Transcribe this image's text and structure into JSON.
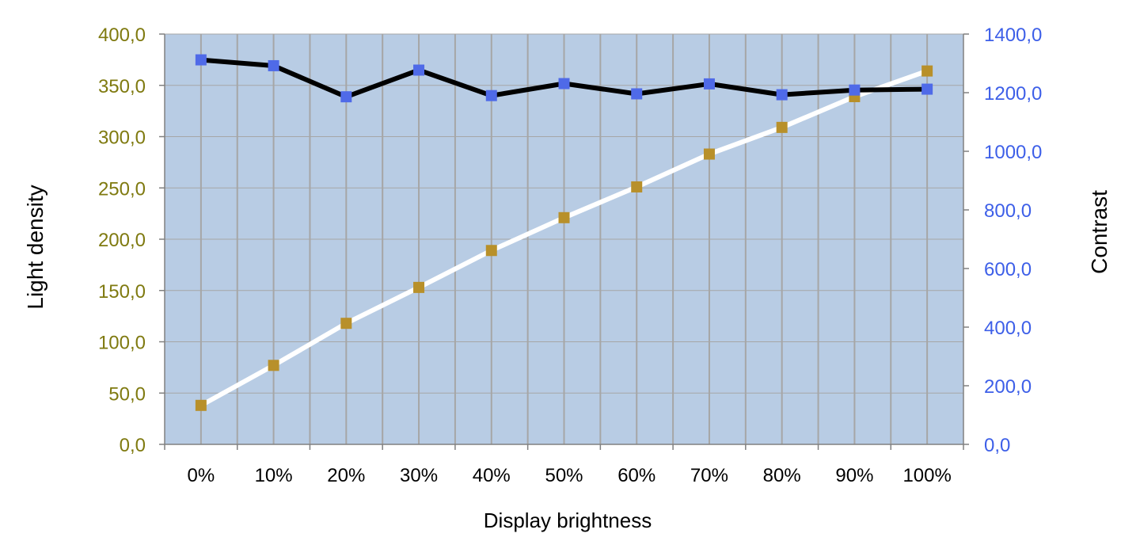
{
  "chart_data": {
    "type": "line",
    "xlabel": "Display brightness",
    "ylabel_left": "Light density",
    "ylabel_right": "Contrast",
    "categories": [
      "0%",
      "10%",
      "20%",
      "30%",
      "40%",
      "50%",
      "60%",
      "70%",
      "80%",
      "90%",
      "100%"
    ],
    "y_left": {
      "lim": [
        0,
        400
      ],
      "ticks": [
        0,
        50,
        100,
        150,
        200,
        250,
        300,
        350,
        400
      ],
      "tick_labels": [
        "0,0",
        "50,0",
        "100,0",
        "150,0",
        "200,0",
        "250,0",
        "300,0",
        "350,0",
        "400,0"
      ]
    },
    "y_right": {
      "lim": [
        0,
        1400
      ],
      "ticks": [
        0,
        200,
        400,
        600,
        800,
        1000,
        1200,
        1400
      ],
      "tick_labels": [
        "0,0",
        "200,0",
        "400,0",
        "600,0",
        "800,0",
        "1000,0",
        "1200,0",
        "1400,0"
      ]
    },
    "series": [
      {
        "axis": "left",
        "line_color": "#ffffff",
        "marker_color": "#b8902a",
        "values": [
          38,
          77,
          118,
          153,
          189,
          221,
          251,
          283,
          309,
          339,
          364
        ]
      },
      {
        "axis": "right",
        "line_color": "#000000",
        "marker_color": "#4f6ae8",
        "values": [
          1312,
          1292,
          1186,
          1277,
          1190,
          1231,
          1196,
          1230,
          1193,
          1209,
          1212
        ]
      }
    ],
    "colors": {
      "plot_background": "#b8cce4",
      "gridline": "#a6a6a6",
      "left_tick_color": "#7f7a10",
      "right_tick_color": "#3d5fe8"
    },
    "grid": true,
    "legend": "none"
  }
}
